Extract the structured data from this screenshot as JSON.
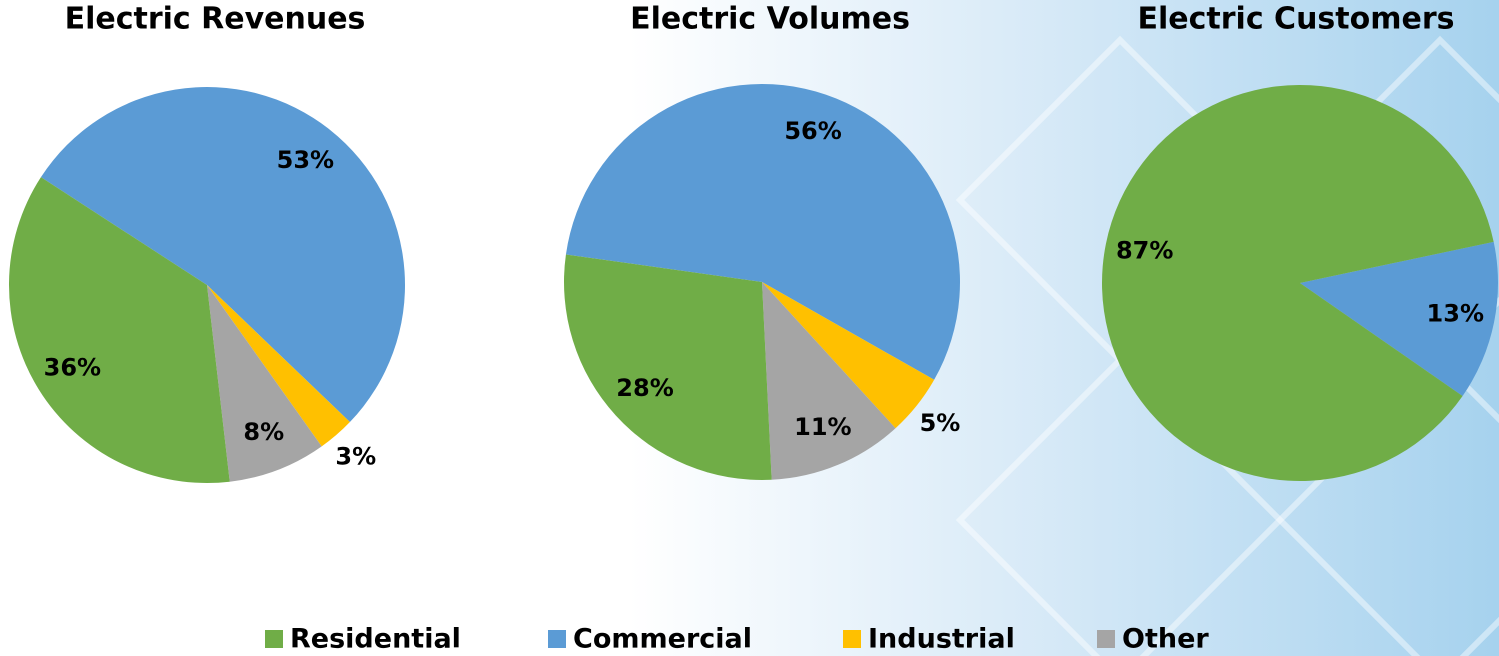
{
  "chart_data": [
    {
      "type": "pie",
      "title": "Electric Revenues",
      "categories": [
        "Commercial",
        "Industrial",
        "Other",
        "Residential"
      ],
      "values": [
        53,
        3,
        8,
        36
      ],
      "value_labels": [
        "53%",
        "3%",
        "8%",
        "36%"
      ]
    },
    {
      "type": "pie",
      "title": "Electric Volumes",
      "categories": [
        "Commercial",
        "Industrial",
        "Other",
        "Residential"
      ],
      "values": [
        56,
        5,
        11,
        28
      ],
      "value_labels": [
        "56%",
        "5%",
        "11%",
        "28%"
      ]
    },
    {
      "type": "pie",
      "title": "Electric Customers",
      "categories": [
        "Commercial",
        "Residential"
      ],
      "values": [
        13,
        87
      ],
      "value_labels": [
        "13%",
        "87%"
      ]
    }
  ],
  "legend": [
    {
      "name": "Residential",
      "color": "#70ad47"
    },
    {
      "name": "Commercial",
      "color": "#5b9bd5"
    },
    {
      "name": "Industrial",
      "color": "#ffc000"
    },
    {
      "name": "Other",
      "color": "#a5a5a5"
    }
  ]
}
